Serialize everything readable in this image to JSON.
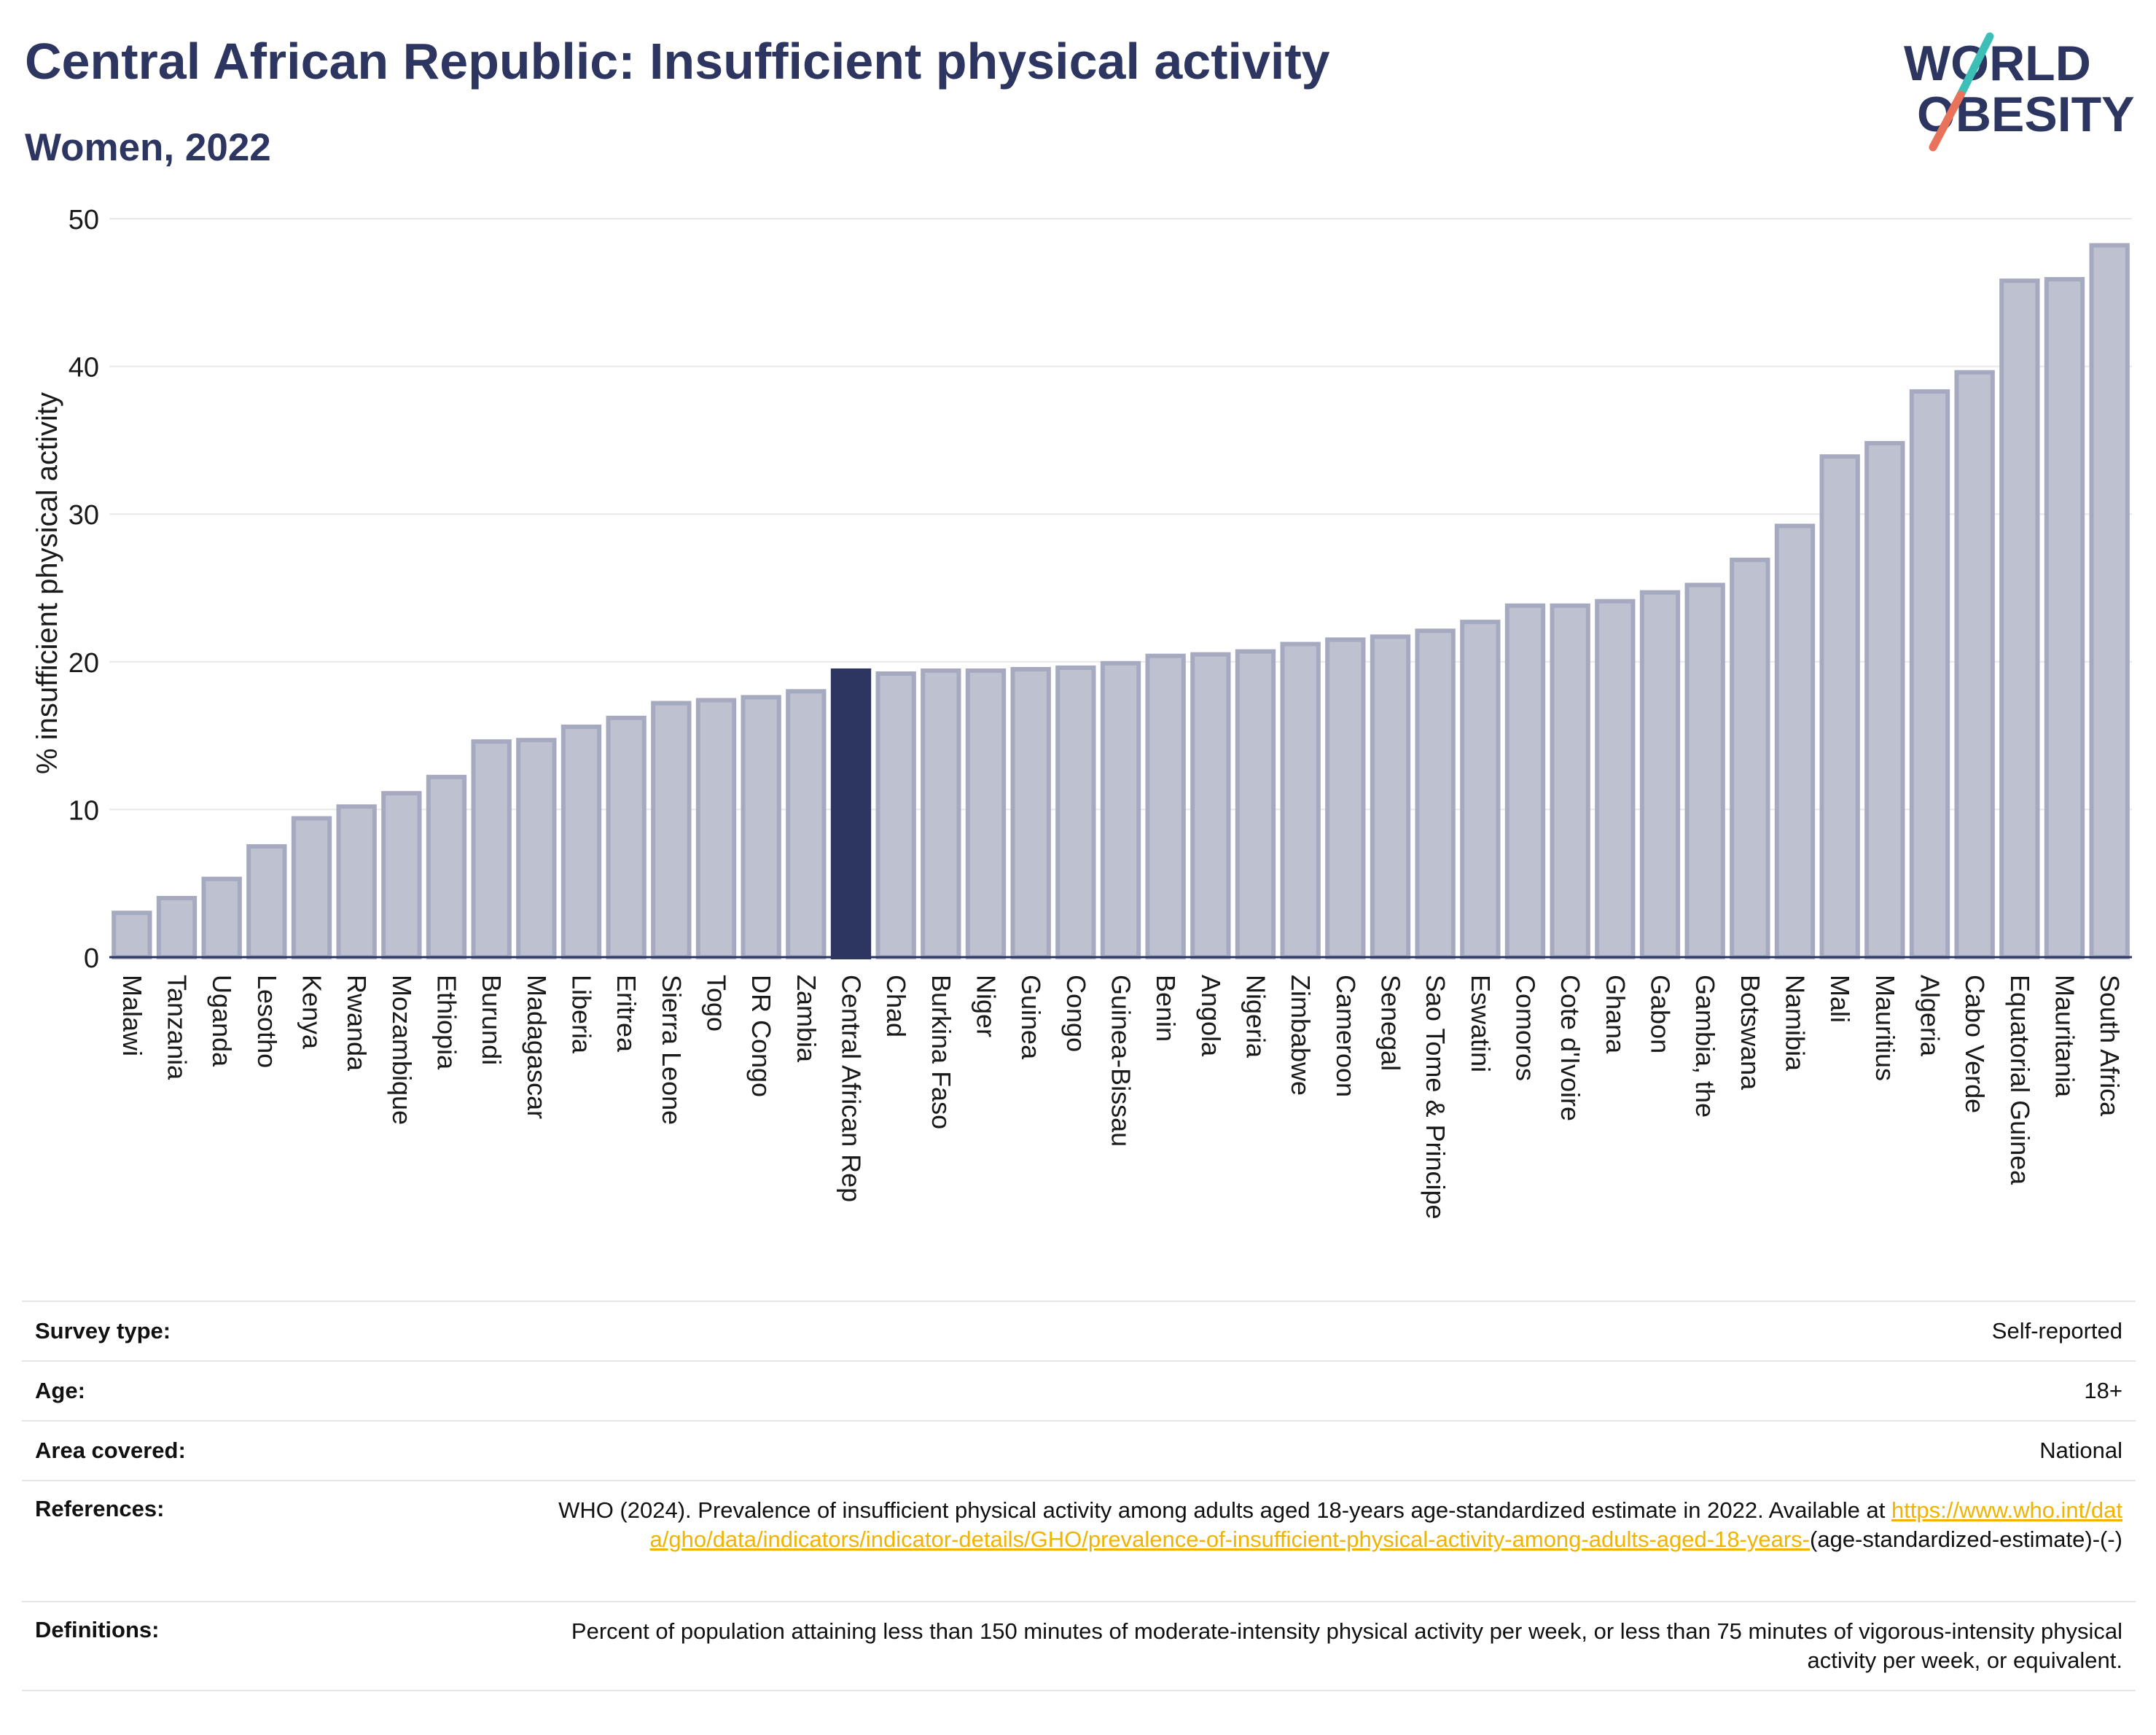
{
  "header": {
    "title": "Central African Republic: Insufficient physical activity",
    "subtitle": "Women, 2022"
  },
  "logo": {
    "line1": "WORLD",
    "line2": "OBESITY",
    "text_color": "#2d3561",
    "slash_colors": [
      "#3dbfb8",
      "#e8735a"
    ]
  },
  "colors": {
    "bar": "#bec1cf",
    "bar_edge": "#a6aac0",
    "highlight": "#2d3561",
    "grid": "#e8e8e8",
    "axis": "#2d3561",
    "link": "#f0b400"
  },
  "chart_data": {
    "type": "bar",
    "title": "Central African Republic: Insufficient physical activity",
    "subtitle": "Women, 2022",
    "ylabel": "% insufficient physical activity",
    "xlabel": "",
    "ylim": [
      0,
      50
    ],
    "yticks": [
      0,
      10,
      20,
      30,
      40,
      50
    ],
    "grid": true,
    "highlight": "Central African Rep",
    "categories": [
      "Malawi",
      "Tanzania",
      "Uganda",
      "Lesotho",
      "Kenya",
      "Rwanda",
      "Mozambique",
      "Ethiopia",
      "Burundi",
      "Madagascar",
      "Liberia",
      "Eritrea",
      "Sierra Leone",
      "Togo",
      "DR Congo",
      "Zambia",
      "Central African Rep",
      "Chad",
      "Burkina Faso",
      "Niger",
      "Guinea",
      "Congo",
      "Guinea-Bissau",
      "Benin",
      "Angola",
      "Nigeria",
      "Zimbabwe",
      "Cameroon",
      "Senegal",
      "Sao Tome & Principe",
      "Eswatini",
      "Comoros",
      "Cote d'Ivoire",
      "Ghana",
      "Gabon",
      "Gambia, the",
      "Botswana",
      "Namibia",
      "Mali",
      "Mauritius",
      "Algeria",
      "Cabo Verde",
      "Equatorial Guinea",
      "Mauritania",
      "South Africa"
    ],
    "values": [
      3.0,
      4.0,
      5.3,
      7.5,
      9.4,
      10.2,
      11.1,
      12.2,
      14.6,
      14.7,
      15.6,
      16.2,
      17.2,
      17.4,
      17.6,
      18.0,
      19.4,
      19.2,
      19.4,
      19.4,
      19.5,
      19.6,
      19.9,
      20.4,
      20.5,
      20.7,
      21.2,
      21.5,
      21.7,
      22.1,
      22.7,
      23.8,
      23.8,
      24.1,
      24.7,
      25.2,
      26.9,
      29.2,
      33.9,
      34.8,
      38.3,
      39.6,
      45.8,
      45.9,
      48.2
    ]
  },
  "meta": {
    "rows": [
      {
        "label": "Survey type:",
        "value": "Self-reported"
      },
      {
        "label": "Age:",
        "value": "18+"
      },
      {
        "label": "Area covered:",
        "value": "National"
      }
    ],
    "references": {
      "label": "References:",
      "text": "WHO (2024). Prevalence of insufficient physical activity among adults aged 18-years age-standardized estimate in 2022. Available at",
      "link": "https://www.who.int/data/gho/data/indicators/indicator-details/GHO/prevalence-of-insufficient-physical-activity-among-adults-aged-18-years-",
      "suffix": "(age-standardized-estimate)-(-)"
    },
    "definitions": {
      "label": "Definitions:",
      "text": "Percent of population attaining less than 150 minutes of moderate-intensity physical activity per week, or less than 75 minutes of vigorous-intensity physical activity per week, or equivalent."
    }
  }
}
